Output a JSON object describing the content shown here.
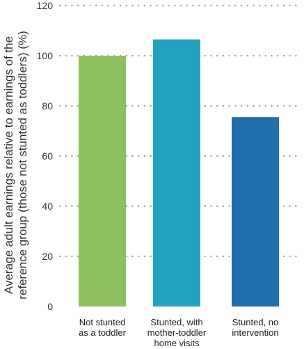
{
  "chart_data": {
    "type": "bar",
    "categories": [
      [
        "Not stunted",
        "as a toddler"
      ],
      [
        "Stunted, with",
        "mother-toddler",
        "home visits"
      ],
      [
        "Stunted, no",
        "intervention"
      ]
    ],
    "values": [
      100,
      106.5,
      75.5
    ],
    "colors": [
      "#8dc15e",
      "#21a3bf",
      "#1f6eae"
    ],
    "ylabel_lines": [
      "Average adult earnings relative to earnings of the",
      "reference group (those not stunted as toddlers) (%)"
    ],
    "xlabel": "",
    "title": "",
    "ylim": [
      0,
      120
    ],
    "yticks": [
      0,
      20,
      40,
      60,
      80,
      100,
      120
    ],
    "grid": true,
    "legend": "none"
  }
}
